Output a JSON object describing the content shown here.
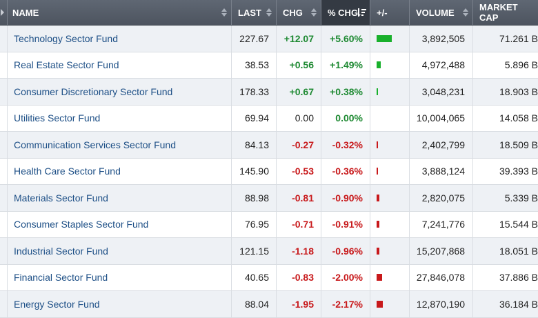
{
  "columns": {
    "name": "NAME",
    "last": "LAST",
    "chg": "CHG",
    "pct_chg": "% CHG",
    "plus_minus": "+/-",
    "volume": "VOLUME",
    "market_cap": "MARKET CAP"
  },
  "colors": {
    "header_bg": "#4d545f",
    "sorted_header_bg": "#343a43",
    "positive": "#1f8a33",
    "negative": "#c8191b",
    "bar_up": "#19b02c",
    "bar_down": "#c8191b",
    "link": "#1d4f86"
  },
  "rows": [
    {
      "name": "Technology Sector Fund",
      "last": "227.67",
      "chg": "+12.07",
      "pct": "+5.60%",
      "dir": "up",
      "bar": 5.6,
      "volume": "3,892,505",
      "cap": "71.261 B"
    },
    {
      "name": "Real Estate Sector Fund",
      "last": "38.53",
      "chg": "+0.56",
      "pct": "+1.49%",
      "dir": "up",
      "bar": 1.49,
      "volume": "4,972,488",
      "cap": "5.896 B"
    },
    {
      "name": "Consumer Discretionary Sector Fund",
      "last": "178.33",
      "chg": "+0.67",
      "pct": "+0.38%",
      "dir": "up",
      "bar": 0.38,
      "volume": "3,048,231",
      "cap": "18.903 B"
    },
    {
      "name": "Utilities Sector Fund",
      "last": "69.94",
      "chg": "0.00",
      "pct": "0.00%",
      "dir": "flat",
      "bar": 0,
      "volume": "10,004,065",
      "cap": "14.058 B"
    },
    {
      "name": "Communication Services Sector Fund",
      "last": "84.13",
      "chg": "-0.27",
      "pct": "-0.32%",
      "dir": "down",
      "bar": 0.32,
      "volume": "2,402,799",
      "cap": "18.509 B"
    },
    {
      "name": "Health Care Sector Fund",
      "last": "145.90",
      "chg": "-0.53",
      "pct": "-0.36%",
      "dir": "down",
      "bar": 0.36,
      "volume": "3,888,124",
      "cap": "39.393 B"
    },
    {
      "name": "Materials Sector Fund",
      "last": "88.98",
      "chg": "-0.81",
      "pct": "-0.90%",
      "dir": "down",
      "bar": 0.9,
      "volume": "2,820,075",
      "cap": "5.339 B"
    },
    {
      "name": "Consumer Staples Sector Fund",
      "last": "76.95",
      "chg": "-0.71",
      "pct": "-0.91%",
      "dir": "down",
      "bar": 0.91,
      "volume": "7,241,776",
      "cap": "15.544 B"
    },
    {
      "name": "Industrial Sector Fund",
      "last": "121.15",
      "chg": "-1.18",
      "pct": "-0.96%",
      "dir": "down",
      "bar": 0.96,
      "volume": "15,207,868",
      "cap": "18.051 B"
    },
    {
      "name": "Financial Sector Fund",
      "last": "40.65",
      "chg": "-0.83",
      "pct": "-2.00%",
      "dir": "down",
      "bar": 2.0,
      "volume": "27,846,078",
      "cap": "37.886 B"
    },
    {
      "name": "Energy Sector Fund",
      "last": "88.04",
      "chg": "-1.95",
      "pct": "-2.17%",
      "dir": "down",
      "bar": 2.17,
      "volume": "12,870,190",
      "cap": "36.184 B"
    }
  ]
}
